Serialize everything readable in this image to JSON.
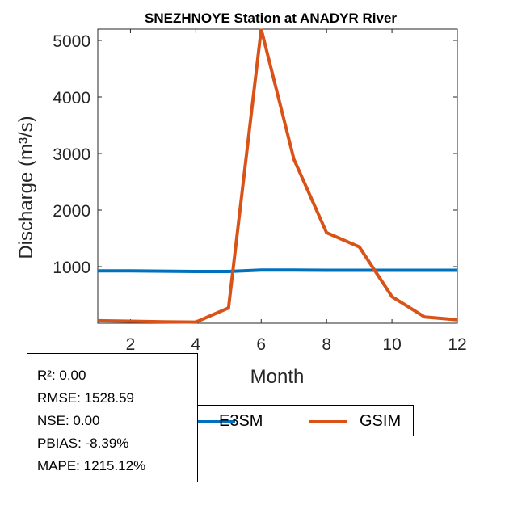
{
  "chart_data": {
    "type": "line",
    "title": "SNEZHNOYE  Station at  ANADYR  River",
    "xlabel": "Month",
    "ylabel": "Discharge (m³/s)",
    "xlim": [
      1,
      12
    ],
    "ylim": [
      0,
      5200
    ],
    "xticks": [
      2,
      4,
      6,
      8,
      10,
      12
    ],
    "yticks": [
      1000,
      2000,
      3000,
      4000,
      5000
    ],
    "grid": false,
    "legend_position": "bottom",
    "x": [
      1,
      2,
      3,
      4,
      5,
      6,
      7,
      8,
      9,
      10,
      11,
      12
    ],
    "series": [
      {
        "name": "E3SM",
        "color": "#0072BD",
        "values": [
          925,
          925,
          920,
          915,
          915,
          940,
          940,
          935,
          935,
          935,
          935,
          935
        ]
      },
      {
        "name": "GSIM",
        "color": "#D95319",
        "values": [
          45,
          35,
          25,
          20,
          270,
          5200,
          2900,
          1600,
          1350,
          470,
          110,
          60
        ]
      }
    ]
  },
  "stats": {
    "r2": "R²: 0.00",
    "rmse": "RMSE: 1528.59",
    "nse": "NSE: 0.00",
    "pbias": "PBIAS: -8.39%",
    "mape": "MAPE: 1215.12%"
  }
}
